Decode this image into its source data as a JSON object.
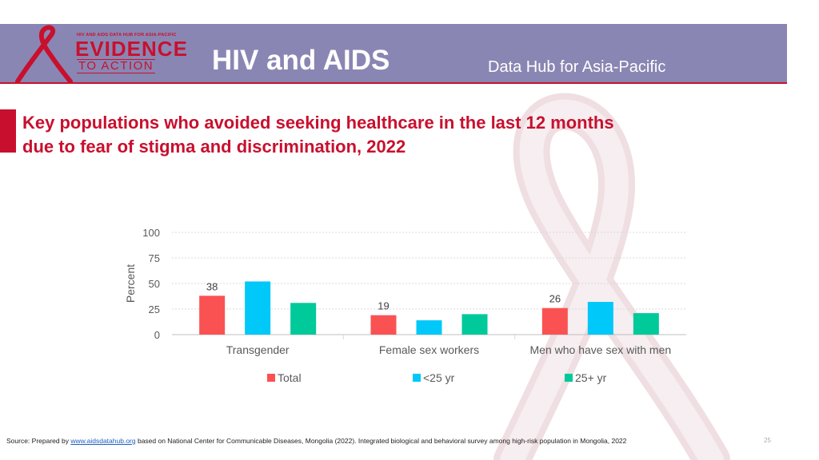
{
  "header": {
    "logo_small": "HIV AND AIDS DATA HUB FOR ASIA-PACIFIC",
    "logo_evidence": "EVIDENCE",
    "logo_action": "TO ACTION",
    "title": "HIV and AIDS",
    "subtitle": "Data Hub for Asia-Pacific"
  },
  "slide": {
    "title_line1": "Key populations who avoided seeking healthcare in the last 12 months",
    "title_line2": "due to fear of stigma and discrimination, 2022"
  },
  "chart_data": {
    "type": "bar",
    "title": "Key populations who avoided seeking healthcare in the last 12 months due to fear of stigma and discrimination, 2022",
    "ylabel": "Percent",
    "xlabel": "",
    "ylim": [
      0,
      100
    ],
    "yticks": [
      0,
      25,
      50,
      75,
      100
    ],
    "categories": [
      "Transgender",
      "Female sex workers",
      "Men who have sex with men"
    ],
    "series": [
      {
        "name": "Total",
        "color": "#fa5252",
        "values": [
          38,
          19,
          26
        ],
        "labels": [
          "38",
          "19",
          "26"
        ]
      },
      {
        "name": "<25 yr",
        "color": "#00c8f8",
        "values": [
          52,
          14,
          32
        ],
        "labels": [
          "",
          "",
          ""
        ]
      },
      {
        "name": "25+ yr",
        "color": "#00c99a",
        "values": [
          31,
          20,
          21
        ],
        "labels": [
          "",
          "",
          ""
        ]
      }
    ],
    "grid": true,
    "legend_position": "bottom"
  },
  "footer": {
    "source_prefix": "Source: Prepared by ",
    "source_link": "www.aidsdatahub.org",
    "source_rest": "  based on National Center for Communicable Diseases, Mongolia (2022). Integrated biological and behavioral survey among high-risk population in Mongolia, 2022",
    "page_number": "25"
  }
}
